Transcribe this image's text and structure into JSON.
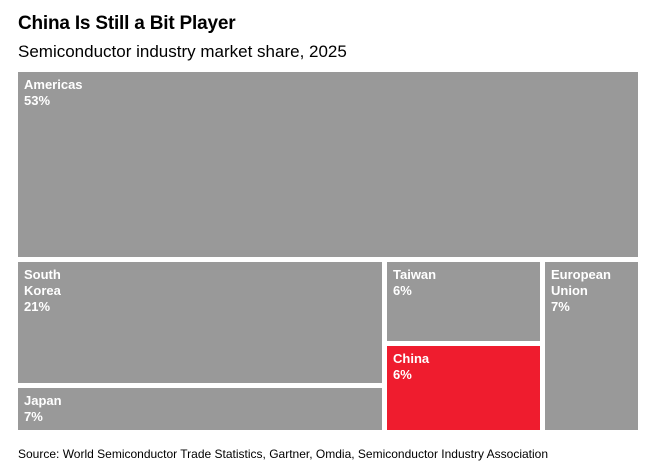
{
  "title": "China Is Still a Bit Player",
  "subtitle": "Semiconductor industry market share, 2025",
  "source": "Source: World Semiconductor Trade Statistics, Gartner, Omdia, Semiconductor Industry Association",
  "colors": {
    "default_tile": "#999999",
    "highlight_tile": "#ef1c2e",
    "gap": "#ffffff"
  },
  "chart_data": {
    "type": "treemap",
    "title": "China Is Still a Bit Player",
    "subtitle": "Semiconductor industry market share, 2025",
    "unit": "%",
    "items": [
      {
        "name": "Americas",
        "value": 53,
        "label": "53%",
        "highlight": false
      },
      {
        "name": "South Korea",
        "value": 21,
        "label": "21%",
        "highlight": false
      },
      {
        "name": "Japan",
        "value": 7,
        "label": "7%",
        "highlight": false
      },
      {
        "name": "Taiwan",
        "value": 6,
        "label": "6%",
        "highlight": false
      },
      {
        "name": "China",
        "value": 6,
        "label": "6%",
        "highlight": true
      },
      {
        "name": "European Union",
        "value": 7,
        "label": "7%",
        "highlight": false
      }
    ]
  }
}
